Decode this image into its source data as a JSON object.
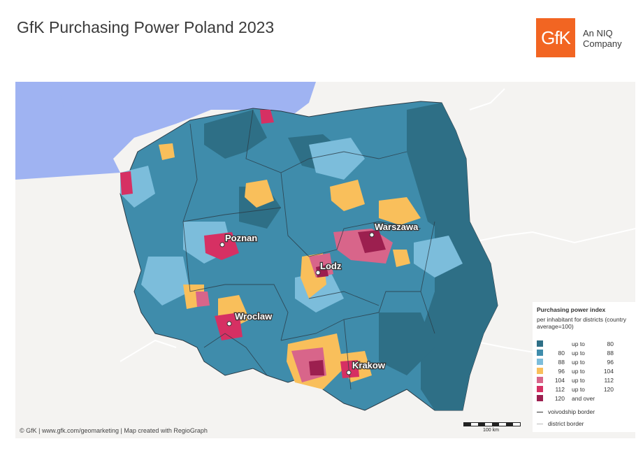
{
  "title": "GfK Purchasing Power Poland 2023",
  "brand": {
    "logo_text": "GfK",
    "tagline": "An NIQ Company",
    "color": "#f26522"
  },
  "cities": [
    {
      "name": "Poznan"
    },
    {
      "name": "Warszawa"
    },
    {
      "name": "Lodz"
    },
    {
      "name": "Wroclaw"
    },
    {
      "name": "Krakow"
    }
  ],
  "legend": {
    "title": "Purchasing power index",
    "subtitle": "per inhabitant for districts (country average=100)",
    "classes": [
      {
        "from": "",
        "word": "up to",
        "to": "80",
        "color": "#2e6f86"
      },
      {
        "from": "80",
        "word": "up to",
        "to": "88",
        "color": "#3f8cab"
      },
      {
        "from": "88",
        "word": "up to",
        "to": "96",
        "color": "#7cbddb"
      },
      {
        "from": "96",
        "word": "up to",
        "to": "104",
        "color": "#f9bf5b"
      },
      {
        "from": "104",
        "word": "up to",
        "to": "112",
        "color": "#d8658a"
      },
      {
        "from": "112",
        "word": "up to",
        "to": "120",
        "color": "#d63063"
      },
      {
        "from": "120",
        "word": "and over",
        "to": "",
        "color": "#9c1f4f"
      }
    ],
    "voivodship_label": "voivodship border",
    "district_label": "district border"
  },
  "scale_label": "100 km",
  "credits": "© GfK | www.gfk.com/geomarketing | Map created with RegioGraph"
}
